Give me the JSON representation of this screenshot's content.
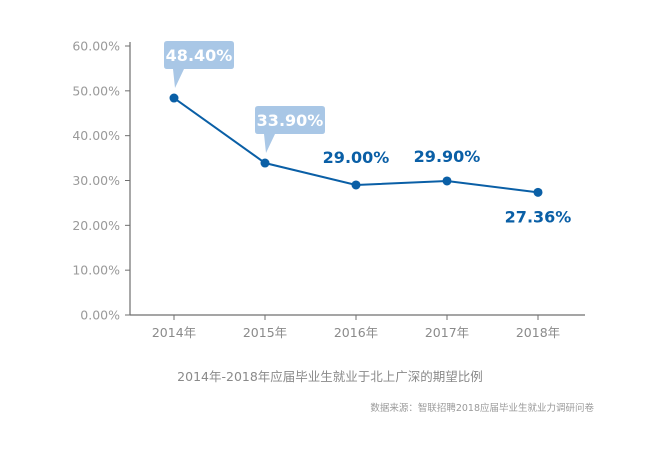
{
  "chart_data": {
    "type": "line",
    "categories": [
      "2014年",
      "2015年",
      "2016年",
      "2017年",
      "2018年"
    ],
    "values": [
      48.4,
      33.9,
      29.0,
      29.9,
      27.36
    ],
    "data_labels": [
      "48.40%",
      "33.90%",
      "29.00%",
      "29.90%",
      "27.36%"
    ],
    "callout_indices": [
      0,
      1
    ],
    "yticks": [
      "0.00%",
      "10.00%",
      "20.00%",
      "30.00%",
      "40.00%",
      "50.00%",
      "60.00%"
    ],
    "ylim": [
      0,
      60
    ],
    "grid": false,
    "title": "",
    "xlabel": "",
    "ylabel": "",
    "colors": {
      "line": "#0a5fa6",
      "label": "#0a5fa6",
      "callout_bg": "#a9c7e6",
      "callout_text": "#ffffff",
      "axis": "#6f6f6f"
    }
  },
  "caption": "2014年-2018年应届毕业生就业于北上广深的期望比例",
  "source": "数据来源：智联招聘2018应届毕业生就业力调研问卷"
}
